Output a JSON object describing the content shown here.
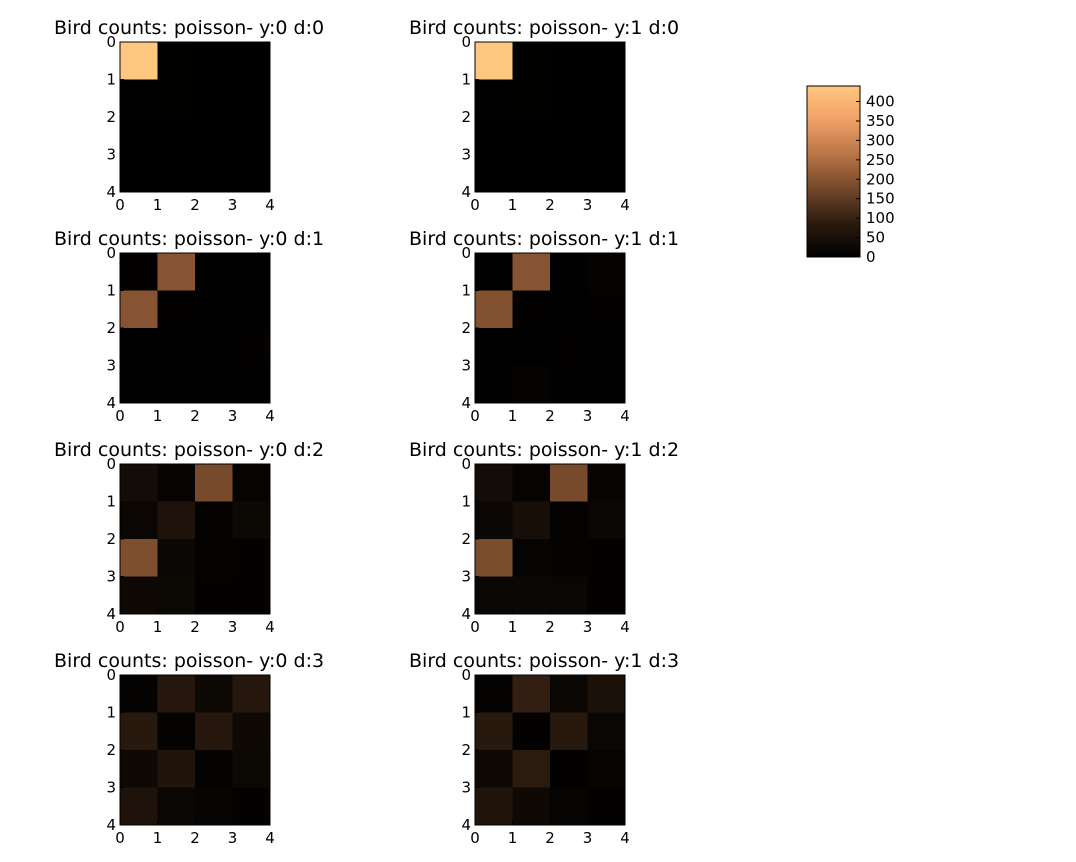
{
  "colormap": [
    "#000000",
    "#ffb877"
  ],
  "colorbar": {
    "min": 0,
    "max": 440,
    "ticks": [
      "0",
      "50",
      "100",
      "150",
      "200",
      "250",
      "300",
      "350",
      "400"
    ]
  },
  "chart_data": [
    {
      "type": "heatmap",
      "title": "Bird counts: poisson- y:0 d:0",
      "xticks": [
        "0",
        "1",
        "2",
        "3",
        "4"
      ],
      "yticks": [
        "0",
        "1",
        "2",
        "3",
        "4"
      ],
      "values": [
        [
          440,
          2,
          1,
          1
        ],
        [
          3,
          2,
          1,
          1
        ],
        [
          1,
          1,
          1,
          1
        ],
        [
          1,
          1,
          1,
          1
        ]
      ]
    },
    {
      "type": "heatmap",
      "title": "Bird counts: poisson- y:1 d:0",
      "xticks": [
        "0",
        "1",
        "2",
        "3",
        "4"
      ],
      "yticks": [
        "0",
        "1",
        "2",
        "3",
        "4"
      ],
      "values": [
        [
          440,
          2,
          1,
          1
        ],
        [
          3,
          2,
          1,
          1
        ],
        [
          1,
          1,
          1,
          1
        ],
        [
          1,
          1,
          1,
          1
        ]
      ]
    },
    {
      "type": "heatmap",
      "title": "Bird counts: poisson- y:0 d:1",
      "xticks": [
        "0",
        "1",
        "2",
        "3",
        "4"
      ],
      "yticks": [
        "0",
        "1",
        "2",
        "3",
        "4"
      ],
      "values": [
        [
          5,
          200,
          3,
          3
        ],
        [
          200,
          5,
          3,
          3
        ],
        [
          4,
          4,
          4,
          5
        ],
        [
          4,
          4,
          4,
          4
        ]
      ]
    },
    {
      "type": "heatmap",
      "title": "Bird counts: poisson- y:1 d:1",
      "xticks": [
        "0",
        "1",
        "2",
        "3",
        "4"
      ],
      "yticks": [
        "0",
        "1",
        "2",
        "3",
        "4"
      ],
      "values": [
        [
          4,
          200,
          4,
          10
        ],
        [
          195,
          6,
          4,
          6
        ],
        [
          4,
          4,
          6,
          4
        ],
        [
          4,
          10,
          4,
          4
        ]
      ]
    },
    {
      "type": "heatmap",
      "title": "Bird counts: poisson- y:0 d:2",
      "xticks": [
        "0",
        "1",
        "2",
        "3",
        "4"
      ],
      "yticks": [
        "0",
        "1",
        "2",
        "3",
        "4"
      ],
      "values": [
        [
          40,
          15,
          180,
          12
        ],
        [
          20,
          60,
          10,
          25
        ],
        [
          190,
          22,
          10,
          8
        ],
        [
          30,
          25,
          8,
          5
        ]
      ]
    },
    {
      "type": "heatmap",
      "title": "Bird counts: poisson- y:1 d:2",
      "xticks": [
        "0",
        "1",
        "2",
        "3",
        "4"
      ],
      "yticks": [
        "0",
        "1",
        "2",
        "3",
        "4"
      ],
      "values": [
        [
          40,
          12,
          180,
          15
        ],
        [
          22,
          45,
          10,
          18
        ],
        [
          185,
          12,
          10,
          8
        ],
        [
          20,
          22,
          18,
          8
        ]
      ]
    },
    {
      "type": "heatmap",
      "title": "Bird counts: poisson- y:0 d:3",
      "xticks": [
        "0",
        "1",
        "2",
        "3",
        "4"
      ],
      "yticks": [
        "0",
        "1",
        "2",
        "3",
        "4"
      ],
      "values": [
        [
          10,
          75,
          25,
          75
        ],
        [
          80,
          10,
          75,
          30
        ],
        [
          30,
          65,
          10,
          25
        ],
        [
          60,
          18,
          15,
          8
        ]
      ]
    },
    {
      "type": "heatmap",
      "title": "Bird counts: poisson- y:1 d:3",
      "xticks": [
        "0",
        "1",
        "2",
        "3",
        "4"
      ],
      "yticks": [
        "0",
        "1",
        "2",
        "3",
        "4"
      ],
      "values": [
        [
          10,
          95,
          20,
          55
        ],
        [
          80,
          8,
          80,
          20
        ],
        [
          28,
          85,
          8,
          12
        ],
        [
          65,
          28,
          12,
          8
        ]
      ]
    }
  ]
}
